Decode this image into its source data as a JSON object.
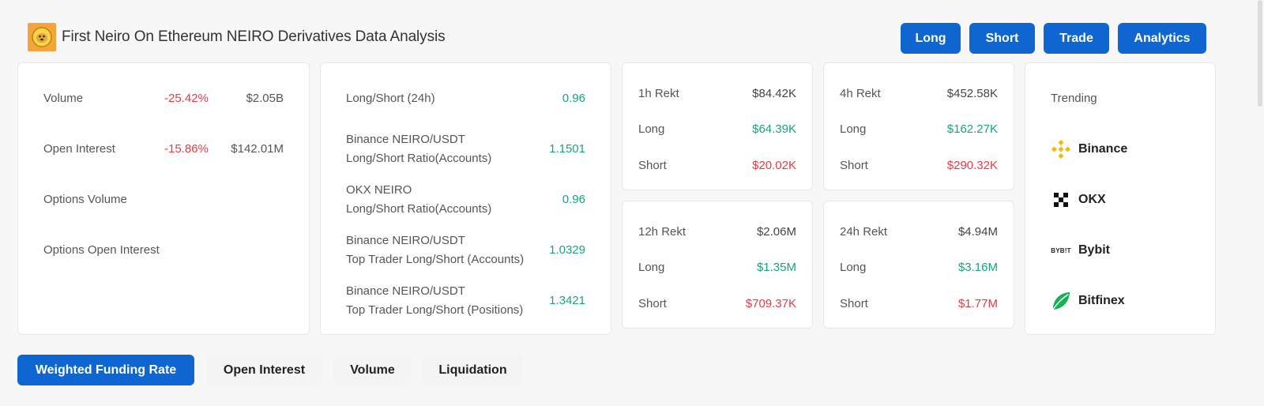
{
  "header": {
    "title": "First Neiro On Ethereum NEIRO Derivatives Data Analysis",
    "actions": [
      "Long",
      "Short",
      "Trade",
      "Analytics"
    ]
  },
  "overview": {
    "rows": [
      {
        "label": "Volume",
        "change": "-25.42%",
        "value": "$2.05B"
      },
      {
        "label": "Open Interest",
        "change": "-15.86%",
        "value": "$142.01M"
      },
      {
        "label": "Options Volume",
        "change": "",
        "value": ""
      },
      {
        "label": "Options Open Interest",
        "change": "",
        "value": ""
      }
    ]
  },
  "ratios": {
    "rows": [
      {
        "line1": "Long/Short (24h)",
        "line2": "",
        "value": "0.96"
      },
      {
        "line1": "Binance NEIRO/USDT",
        "line2": "Long/Short Ratio(Accounts)",
        "value": "1.1501"
      },
      {
        "line1": "OKX NEIRO",
        "line2": "Long/Short Ratio(Accounts)",
        "value": "0.96"
      },
      {
        "line1": "Binance NEIRO/USDT",
        "line2": "Top Trader Long/Short (Accounts)",
        "value": "1.0329"
      },
      {
        "line1": "Binance NEIRO/USDT",
        "line2": "Top Trader Long/Short (Positions)",
        "value": "1.3421"
      }
    ]
  },
  "rekt": [
    {
      "title": "1h Rekt",
      "total": "$84.42K",
      "long_label": "Long",
      "long": "$64.39K",
      "short_label": "Short",
      "short": "$20.02K"
    },
    {
      "title": "4h Rekt",
      "total": "$452.58K",
      "long_label": "Long",
      "long": "$162.27K",
      "short_label": "Short",
      "short": "$290.32K"
    },
    {
      "title": "12h Rekt",
      "total": "$2.06M",
      "long_label": "Long",
      "long": "$1.35M",
      "short_label": "Short",
      "short": "$709.37K"
    },
    {
      "title": "24h Rekt",
      "total": "$4.94M",
      "long_label": "Long",
      "long": "$3.16M",
      "short_label": "Short",
      "short": "$1.77M"
    }
  ],
  "trending": {
    "label": "Trending",
    "exchanges": [
      {
        "name": "Binance",
        "icon": "binance-icon"
      },
      {
        "name": "OKX",
        "icon": "okx-icon"
      },
      {
        "name": "Bybit",
        "icon": "bybit-icon",
        "icon_text": "BYB!T"
      },
      {
        "name": "Bitfinex",
        "icon": "bitfinex-icon"
      }
    ]
  },
  "tabs": [
    "Weighted Funding Rate",
    "Open Interest",
    "Volume",
    "Liquidation"
  ],
  "colors": {
    "accent": "#1066d1",
    "negative": "#ea3943",
    "positive": "#16a37f",
    "logo_bg": "#f4a43a"
  }
}
